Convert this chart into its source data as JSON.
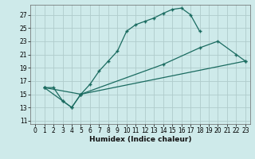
{
  "background_color": "#ceeaea",
  "grid_color": "#b0cccc",
  "line_color": "#1a6b60",
  "xlabel": "Humidex (Indice chaleur)",
  "xlim": [
    -0.5,
    23.5
  ],
  "ylim": [
    10.5,
    28.5
  ],
  "yticks": [
    11,
    13,
    15,
    17,
    19,
    21,
    23,
    25,
    27
  ],
  "xticks": [
    0,
    1,
    2,
    3,
    4,
    5,
    6,
    7,
    8,
    9,
    10,
    11,
    12,
    13,
    14,
    15,
    16,
    17,
    18,
    19,
    20,
    21,
    22,
    23
  ],
  "curve1_x": [
    1,
    2,
    3,
    4,
    5,
    6,
    7,
    8,
    9,
    10,
    11,
    12,
    13,
    14,
    15,
    16,
    17,
    18
  ],
  "curve1_y": [
    16.0,
    16.0,
    14.0,
    13.0,
    15.0,
    16.5,
    18.5,
    20.0,
    21.5,
    24.5,
    25.5,
    26.0,
    26.5,
    27.2,
    27.8,
    28.0,
    27.0,
    24.5
  ],
  "curve2_x": [
    1,
    3,
    4,
    5,
    14,
    18,
    20,
    22,
    23
  ],
  "curve2_y": [
    16.0,
    14.0,
    13.0,
    15.0,
    19.5,
    22.0,
    23.0,
    21.0,
    20.0
  ],
  "curve3_x": [
    1,
    5,
    23
  ],
  "curve3_y": [
    16.0,
    15.0,
    20.0
  ]
}
